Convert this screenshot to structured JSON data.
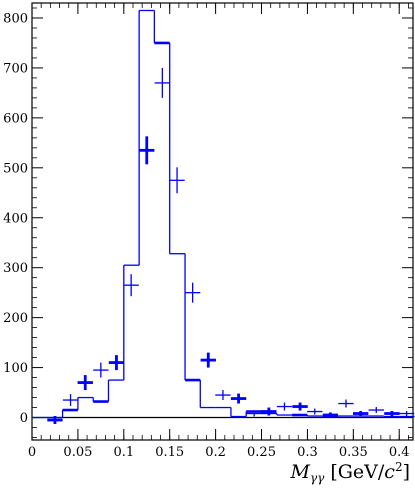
{
  "chart_data": {
    "type": "histogram",
    "title": "",
    "xlabel_parts": {
      "symbol": "M",
      "subscript": "γγ",
      "unit_prefix": " [GeV/",
      "unit_var": "c",
      "unit_pow": "2",
      "unit_suffix": "]"
    },
    "ylabel": "",
    "xlim": [
      0,
      0.415
    ],
    "ylim": [
      -45,
      830
    ],
    "x_ticks": [
      0,
      0.05,
      0.1,
      0.15,
      0.2,
      0.25,
      0.3,
      0.35,
      0.4
    ],
    "x_tick_labels": [
      "0",
      "0.05",
      "0.1",
      "0.15",
      "0.2",
      "0.25",
      "0.3",
      "0.35",
      "0.4"
    ],
    "y_ticks": [
      0,
      100,
      200,
      300,
      400,
      500,
      600,
      700,
      800
    ],
    "y_tick_labels": [
      "0",
      "100",
      "200",
      "300",
      "400",
      "500",
      "600",
      "700",
      "800"
    ],
    "zero_line": true,
    "grid": false,
    "line_color": "#0000ff",
    "histogram": {
      "bin_edges": [
        0.0,
        0.0167,
        0.0333,
        0.05,
        0.0667,
        0.0833,
        0.1,
        0.1167,
        0.1333,
        0.15,
        0.1667,
        0.1833,
        0.2,
        0.2167,
        0.2333,
        0.25,
        0.2667,
        0.2833,
        0.3,
        0.3167,
        0.3333,
        0.35,
        0.3667,
        0.3833,
        0.4,
        0.4167
      ],
      "values": [
        0,
        0,
        15,
        40,
        32,
        75,
        305,
        815,
        750,
        328,
        75,
        20,
        20,
        2,
        12,
        8,
        5,
        5,
        3,
        2,
        3,
        3,
        3,
        2,
        2
      ],
      "thick_bins": [
        2,
        4,
        8,
        10,
        14,
        17
      ]
    },
    "points": {
      "x": [
        0.025,
        0.042,
        0.058,
        0.075,
        0.092,
        0.108,
        0.125,
        0.142,
        0.158,
        0.175,
        0.192,
        0.208,
        0.225,
        0.242,
        0.258,
        0.275,
        0.292,
        0.308,
        0.325,
        0.342,
        0.358,
        0.375,
        0.392,
        0.408
      ],
      "y": [
        -5,
        35,
        70,
        95,
        110,
        265,
        535,
        670,
        475,
        250,
        115,
        45,
        38,
        8,
        12,
        22,
        22,
        12,
        5,
        28,
        8,
        15,
        8,
        8
      ],
      "yerr": [
        8,
        12,
        15,
        15,
        15,
        22,
        28,
        30,
        26,
        20,
        15,
        10,
        10,
        6,
        8,
        8,
        8,
        6,
        5,
        8,
        5,
        6,
        5,
        5
      ],
      "thick": [
        0,
        2,
        4,
        6,
        10,
        12,
        14,
        16,
        18,
        20,
        22
      ]
    }
  }
}
